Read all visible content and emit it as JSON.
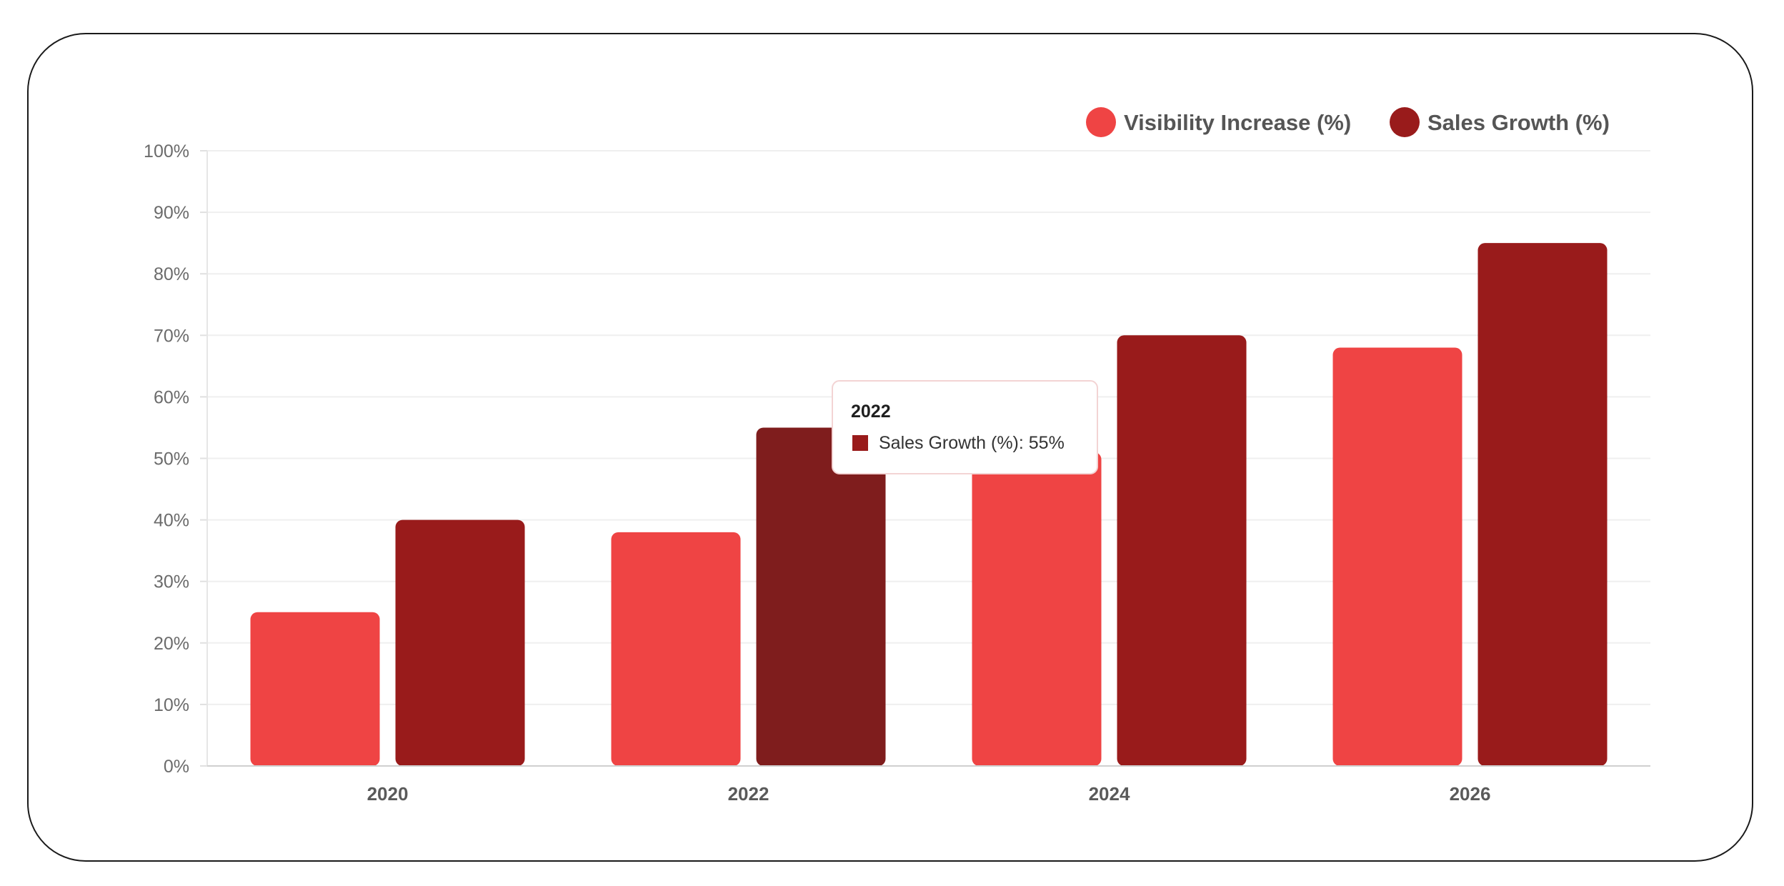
{
  "chart_data": {
    "type": "bar",
    "categories": [
      "2020",
      "2022",
      "2024",
      "2026"
    ],
    "series": [
      {
        "name": "Visibility Increase (%)",
        "color": "#ef4444",
        "values": [
          25,
          38,
          51,
          68
        ]
      },
      {
        "name": "Sales Growth (%)",
        "color": "#991b1b",
        "hover_color": "#7f1d1d",
        "values": [
          40,
          55,
          70,
          85
        ]
      }
    ],
    "ylim": [
      0,
      100
    ],
    "yticks": [
      "0%",
      "10%",
      "20%",
      "30%",
      "40%",
      "50%",
      "60%",
      "70%",
      "80%",
      "90%",
      "100%"
    ],
    "xlabel": "",
    "ylabel": "",
    "title": "",
    "grid": true,
    "legend_position": "top-right",
    "tooltip": {
      "title": "2022",
      "text": "Sales Growth (%): 55%",
      "category_index": 1,
      "series_index": 1
    }
  }
}
